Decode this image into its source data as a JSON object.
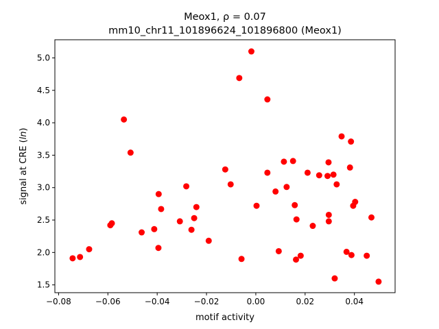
{
  "chart_data": {
    "type": "scatter",
    "title_line1": "Meox1, ρ = 0.07",
    "title_line2": "mm10_chr11_101896624_101896800 (Meox1)",
    "xlabel": "motif activity",
    "ylabel_prefix": "signal at CRE (",
    "ylabel_var": "ln",
    "ylabel_suffix": ")",
    "xlim": [
      -0.0815,
      0.0565
    ],
    "ylim": [
      1.38,
      5.28
    ],
    "x_ticks": [
      -0.08,
      -0.06,
      -0.04,
      -0.02,
      0.0,
      0.02,
      0.04
    ],
    "x_tick_labels": [
      "−0.08",
      "−0.06",
      "−0.04",
      "−0.02",
      "0.00",
      "0.02",
      "0.04"
    ],
    "y_ticks": [
      1.5,
      2.0,
      2.5,
      3.0,
      3.5,
      4.0,
      4.5,
      5.0
    ],
    "y_tick_labels": [
      "1.5",
      "2.0",
      "2.5",
      "3.0",
      "3.5",
      "4.0",
      "4.5",
      "5.0"
    ],
    "grid": false,
    "legend": "none",
    "marker_color": "#ff0000",
    "points": [
      [
        -0.0743,
        1.91
      ],
      [
        -0.0713,
        1.93
      ],
      [
        -0.0676,
        2.05
      ],
      [
        -0.059,
        2.42
      ],
      [
        -0.0584,
        2.45
      ],
      [
        -0.0535,
        4.05
      ],
      [
        -0.0508,
        3.54
      ],
      [
        -0.0463,
        2.31
      ],
      [
        -0.0412,
        2.36
      ],
      [
        -0.0394,
        2.9
      ],
      [
        -0.0395,
        2.07
      ],
      [
        -0.0384,
        2.67
      ],
      [
        -0.0308,
        2.48
      ],
      [
        -0.0282,
        3.02
      ],
      [
        -0.0261,
        2.35
      ],
      [
        -0.025,
        2.53
      ],
      [
        -0.0241,
        2.7
      ],
      [
        -0.0191,
        2.18
      ],
      [
        -0.0124,
        3.28
      ],
      [
        -0.0102,
        3.05
      ],
      [
        -0.0067,
        4.69
      ],
      [
        -0.0058,
        1.9
      ],
      [
        -0.0018,
        5.1
      ],
      [
        0.0003,
        2.72
      ],
      [
        0.0047,
        3.23
      ],
      [
        0.0047,
        4.36
      ],
      [
        0.008,
        2.94
      ],
      [
        0.0093,
        2.02
      ],
      [
        0.0114,
        3.4
      ],
      [
        0.0125,
        3.01
      ],
      [
        0.0151,
        3.41
      ],
      [
        0.0158,
        2.73
      ],
      [
        0.0163,
        1.89
      ],
      [
        0.0165,
        2.51
      ],
      [
        0.0182,
        1.95
      ],
      [
        0.021,
        3.23
      ],
      [
        0.0231,
        2.41
      ],
      [
        0.0257,
        3.19
      ],
      [
        0.0291,
        3.18
      ],
      [
        0.0295,
        3.39
      ],
      [
        0.0296,
        2.58
      ],
      [
        0.0296,
        2.48
      ],
      [
        0.0315,
        3.2
      ],
      [
        0.032,
        1.6
      ],
      [
        0.0328,
        3.05
      ],
      [
        0.0348,
        3.79
      ],
      [
        0.0368,
        2.01
      ],
      [
        0.0382,
        3.31
      ],
      [
        0.0386,
        3.71
      ],
      [
        0.0388,
        1.96
      ],
      [
        0.0395,
        2.72
      ],
      [
        0.0403,
        2.78
      ],
      [
        0.045,
        1.95
      ],
      [
        0.0469,
        2.54
      ],
      [
        0.0498,
        1.55
      ]
    ]
  }
}
